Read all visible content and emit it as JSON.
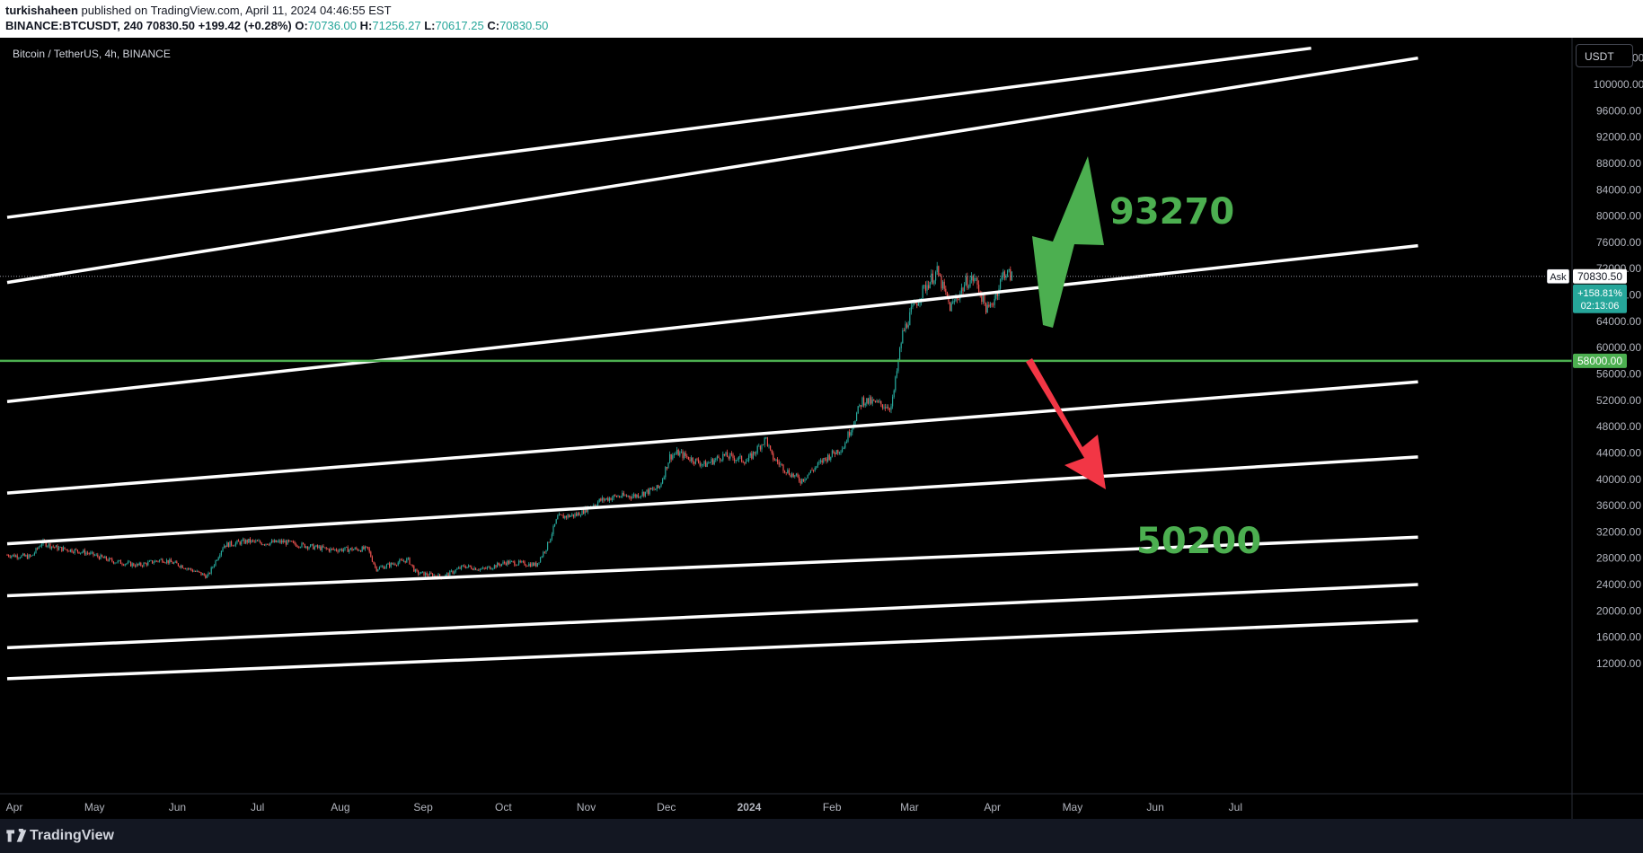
{
  "header": {
    "author": "turkishaheen",
    "published_text": " published on TradingView.com, April 11, 2024 04:46:55 EST",
    "symbol_info": "BINANCE:BTCUSDT, 240",
    "last_price": "70830.50",
    "change": "+199.42 (+0.28%)",
    "o_label": "O:",
    "o_value": "70736.00",
    "h_label": "H:",
    "h_value": "71256.27",
    "l_label": "L:",
    "l_value": "70617.25",
    "c_label": "C:",
    "c_value": "70830.50"
  },
  "chart_title": "Bitcoin / TetherUS, 4h, BINANCE",
  "currency_button": "USDT",
  "footer": {
    "brand": "TradingView"
  },
  "colors": {
    "up": "#26a69a",
    "down": "#ef5350",
    "support": "#4caf50",
    "target": "#4caf50",
    "arrow_up": "#4caf50",
    "arrow_down": "#f23645"
  },
  "chart_data": {
    "type": "candlestick",
    "title": "Bitcoin / TetherUS, 4h, BINANCE",
    "x_ticks": [
      "Apr",
      "May",
      "Jun",
      "Jul",
      "Aug",
      "Sep",
      "Oct",
      "Nov",
      "Dec",
      "2024",
      "Feb",
      "Mar",
      "Apr",
      "May",
      "Jun",
      "Jul"
    ],
    "y_ticks": [
      "12000.00",
      "16000.00",
      "20000.00",
      "24000.00",
      "28000.00",
      "32000.00",
      "36000.00",
      "40000.00",
      "44000.00",
      "48000.00",
      "52000.00",
      "56000.00",
      "60000.00",
      "64000.00",
      "68000.00",
      "72000.00",
      "76000.00",
      "80000.00",
      "84000.00",
      "88000.00",
      "92000.00",
      "96000.00",
      "100000.00",
      "104000.00"
    ],
    "y_range": [
      8000,
      104500
    ],
    "x_range": [
      "2023-04-01",
      "2024-08-15"
    ],
    "price_series": {
      "dates": [
        "2023-04-01",
        "2023-04-10",
        "2023-04-14",
        "2023-04-20",
        "2023-04-26",
        "2023-05-01",
        "2023-05-10",
        "2023-05-20",
        "2023-05-29",
        "2023-06-05",
        "2023-06-15",
        "2023-06-21",
        "2023-06-30",
        "2023-07-06",
        "2023-07-13",
        "2023-07-20",
        "2023-07-31",
        "2023-08-14",
        "2023-08-17",
        "2023-08-29",
        "2023-09-01",
        "2023-09-11",
        "2023-09-19",
        "2023-09-26",
        "2023-10-05",
        "2023-10-16",
        "2023-10-20",
        "2023-10-24",
        "2023-10-31",
        "2023-11-09",
        "2023-11-15",
        "2023-11-22",
        "2023-12-01",
        "2023-12-05",
        "2023-12-08",
        "2023-12-18",
        "2023-12-25",
        "2024-01-03",
        "2024-01-10",
        "2024-01-12",
        "2024-01-18",
        "2024-01-23",
        "2024-02-01",
        "2024-02-08",
        "2024-02-15",
        "2024-02-26",
        "2024-03-01",
        "2024-03-05",
        "2024-03-10",
        "2024-03-14",
        "2024-03-19",
        "2024-03-25",
        "2024-03-28",
        "2024-04-02",
        "2024-04-05",
        "2024-04-08",
        "2024-04-11"
      ],
      "close": [
        28500,
        28200,
        30400,
        29500,
        29200,
        28800,
        27600,
        26900,
        27800,
        26900,
        25200,
        30000,
        30600,
        30300,
        30500,
        30000,
        29300,
        29400,
        26400,
        27800,
        25800,
        25200,
        26800,
        26300,
        27400,
        27000,
        29800,
        34200,
        34600,
        36800,
        37400,
        37500,
        38700,
        43500,
        44000,
        42200,
        43600,
        42800,
        46200,
        43500,
        41200,
        39800,
        43100,
        45000,
        52000,
        51000,
        62000,
        66000,
        69500,
        71500,
        66000,
        70000,
        70500,
        65500,
        68000,
        71500,
        70830
      ]
    },
    "channel_lines": [
      {
        "start": [
          "2023-04-01",
          79800
        ],
        "end": [
          "2024-08-01",
          105500
        ]
      },
      {
        "start": [
          "2023-04-01",
          69900
        ],
        "end": [
          "2024-09-10",
          104000
        ]
      },
      {
        "start": [
          "2023-04-01",
          51800
        ],
        "end": [
          "2024-09-10",
          75500
        ]
      },
      {
        "start": [
          "2023-04-01",
          37900
        ],
        "end": [
          "2024-09-10",
          54800
        ]
      },
      {
        "start": [
          "2023-04-01",
          30200
        ],
        "end": [
          "2024-09-10",
          43400
        ]
      },
      {
        "start": [
          "2023-04-01",
          22300
        ],
        "end": [
          "2024-09-10",
          31200
        ]
      },
      {
        "start": [
          "2023-04-01",
          14400
        ],
        "end": [
          "2024-09-10",
          24000
        ]
      },
      {
        "start": [
          "2023-04-01",
          9700
        ],
        "end": [
          "2024-09-10",
          18500
        ]
      }
    ],
    "support_level": 58000,
    "support_label": "58000.00",
    "ask_label": "Ask",
    "price_label": "70830.50",
    "change_pct_label": "+158.81%",
    "countdown_label": "02:13:06",
    "targets": [
      {
        "label": "93270",
        "value": 93270
      },
      {
        "label": "50200",
        "value": 50200
      }
    ]
  }
}
